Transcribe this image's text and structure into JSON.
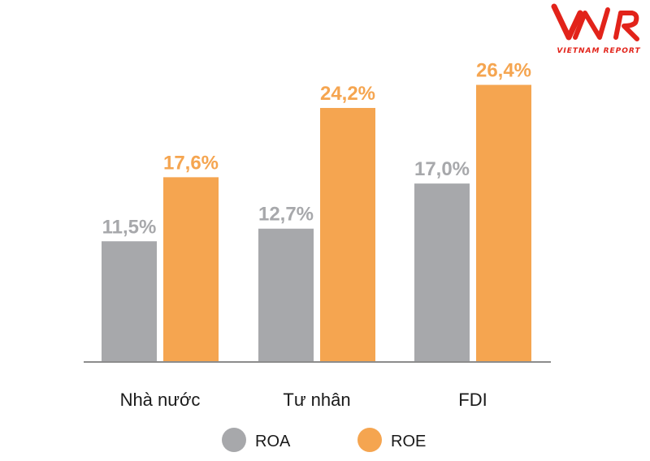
{
  "logo": {
    "mark": "VNR",
    "text": "VIETNAM REPORT",
    "color": "#e2231a"
  },
  "chart_data": {
    "type": "bar",
    "categories": [
      "Nhà nước",
      "Tư nhân",
      "FDI"
    ],
    "series": [
      {
        "name": "ROA",
        "values": [
          11.5,
          12.7,
          17.0
        ],
        "labels": [
          "11,5%",
          "12,7%",
          "17,0%"
        ],
        "color": "#a7a8ab"
      },
      {
        "name": "ROE",
        "values": [
          17.6,
          24.2,
          26.4
        ],
        "labels": [
          "17,6%",
          "24,2%",
          "26,4%"
        ],
        "color": "#f5a550"
      }
    ],
    "ylim": [
      0,
      30
    ],
    "grid": false,
    "legend": "bottom-center"
  }
}
